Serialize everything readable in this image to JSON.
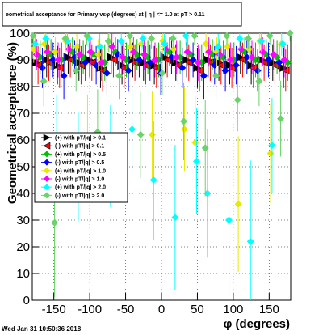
{
  "chart_data": {
    "type": "scatter",
    "title": "eometrical acceptance for Primary vsφ (degrees) at | η | <= 1.0 at pT > 0.11",
    "xlabel": "φ (degrees)",
    "ylabel": "Geometrical acceptance (%)",
    "xlim": [
      -180,
      180
    ],
    "ylim": [
      0,
      100
    ],
    "x_ticks": [
      -150,
      -100,
      -50,
      0,
      50,
      100,
      150
    ],
    "y_ticks": [
      0,
      10,
      20,
      30,
      40,
      50,
      60,
      70,
      80,
      90,
      100
    ],
    "grid": true,
    "legend_position": "left",
    "footer": "Wed Jan 31 10:50:36 2018",
    "series": [
      {
        "name": "(+) with pT/|q| > 0.1",
        "color": "#000000",
        "marker": "triangle-right",
        "x": [
          -175,
          -160,
          -145,
          -130,
          -115,
          -100,
          -85,
          -70,
          -55,
          -40,
          -25,
          -10,
          5,
          20,
          35,
          50,
          65,
          80,
          95,
          110,
          125,
          140,
          155,
          170
        ],
        "y": [
          89,
          90,
          88,
          91,
          89,
          90,
          87,
          91,
          88,
          90,
          89,
          88,
          91,
          89,
          90,
          87,
          90,
          89,
          88,
          91,
          88,
          90,
          89,
          87
        ]
      },
      {
        "name": "(-) with pT/|q| > 0.1",
        "color": "#ff0000",
        "marker": "triangle-left",
        "x": [
          -172,
          -157,
          -142,
          -127,
          -112,
          -97,
          -82,
          -67,
          -52,
          -37,
          -22,
          -7,
          8,
          23,
          38,
          53,
          68,
          83,
          98,
          113,
          128,
          143,
          158,
          173
        ],
        "y": [
          88,
          89,
          87,
          90,
          88,
          89,
          86,
          90,
          87,
          89,
          88,
          87,
          90,
          88,
          89,
          86,
          89,
          88,
          87,
          90,
          87,
          89,
          88,
          86
        ]
      },
      {
        "name": "(+) with pT/|q| > 0.5",
        "color": "#00c000",
        "marker": "diamond",
        "x": [
          -169,
          -154,
          -139,
          -124,
          -109,
          -94,
          -79,
          -64,
          -49,
          -34,
          -19,
          -4,
          11,
          26,
          41,
          56,
          71,
          86,
          101,
          116,
          131,
          146,
          161,
          176
        ],
        "y": [
          91,
          92,
          90,
          93,
          91,
          92,
          89,
          93,
          90,
          92,
          91,
          90,
          93,
          91,
          92,
          89,
          92,
          91,
          90,
          93,
          90,
          92,
          91,
          89
        ]
      },
      {
        "name": "(-) with pT/|q| > 0.5",
        "color": "#0000ff",
        "marker": "diamond",
        "x": [
          -166,
          -151,
          -136,
          -121,
          -106,
          -91,
          -76,
          -61,
          -46,
          -31,
          -16,
          -1,
          14,
          29,
          44,
          59,
          74,
          89,
          104,
          119,
          134,
          149,
          164
        ],
        "y": [
          87,
          90,
          84,
          91,
          89,
          88,
          85,
          92,
          86,
          90,
          89,
          85,
          91,
          87,
          90,
          84,
          88,
          86,
          88,
          91,
          86,
          90,
          89
        ]
      },
      {
        "name": "(+) with pT/|q| > 1.0",
        "color": "#e8e800",
        "marker": "diamond",
        "x": [
          -178,
          -163,
          -148,
          -133,
          -118,
          -103,
          -88,
          -73,
          -58,
          -43,
          -28,
          -13,
          2,
          17,
          32,
          47,
          62,
          77,
          92,
          107,
          122,
          137,
          152,
          167
        ],
        "y": [
          94,
          96,
          93,
          97,
          95,
          60,
          92,
          97,
          58,
          95,
          96,
          62,
          97,
          94,
          64,
          59,
          96,
          93,
          95,
          36,
          94,
          97,
          55,
          96
        ]
      },
      {
        "name": "(-) with pT/|q| > 1.0",
        "color": "#ff00ff",
        "marker": "diamond",
        "x": [
          -174,
          -159,
          -144,
          -129,
          -114,
          -99,
          -84,
          -69,
          -54,
          -39,
          -24,
          -9,
          6,
          21,
          36,
          51,
          66,
          81,
          96,
          111,
          126,
          141,
          156,
          171
        ],
        "y": [
          92,
          93,
          90,
          94,
          92,
          93,
          89,
          95,
          91,
          93,
          92,
          90,
          94,
          91,
          93,
          89,
          93,
          92,
          90,
          94,
          91,
          93,
          92,
          90
        ]
      },
      {
        "name": "(+) with pT/|q| > 2.0",
        "color": "#00ffff",
        "marker": "diamond",
        "x": [
          -176,
          -161,
          -146,
          -131,
          -116,
          -101,
          -86,
          -71,
          -56,
          -41,
          -26,
          -11,
          4,
          19,
          34,
          49,
          64,
          79,
          94,
          109,
          124,
          139,
          154,
          169
        ],
        "y": [
          96,
          98,
          60,
          97,
          50,
          98,
          95,
          54,
          97,
          64,
          98,
          45,
          96,
          31,
          99,
          52,
          40,
          95,
          30,
          98,
          22,
          97,
          58,
          96
        ]
      },
      {
        "name": "(-) with pT/|q| > 2.0",
        "color": "#6ad36a",
        "marker": "diamond",
        "x": [
          -179,
          -164,
          -149,
          -134,
          -119,
          -104,
          -89,
          -74,
          -59,
          -44,
          -29,
          -14,
          1,
          16,
          31,
          46,
          61,
          76,
          91,
          106,
          121,
          136,
          151,
          166,
          179
        ],
        "y": [
          99,
          82,
          29,
          98,
          86,
          99,
          63,
          97,
          84,
          99,
          62,
          98,
          85,
          98,
          67,
          99,
          57,
          84,
          99,
          75,
          98,
          82,
          99,
          68,
          100
        ]
      }
    ]
  }
}
